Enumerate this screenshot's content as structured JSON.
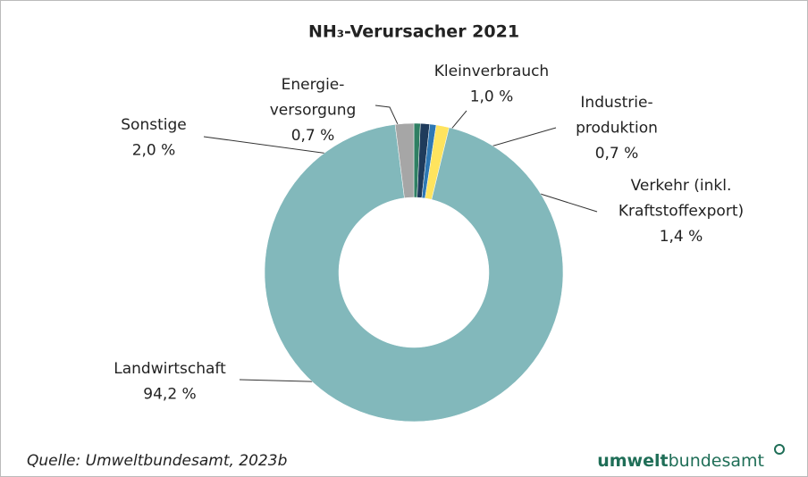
{
  "chart_data": {
    "type": "donut",
    "title": "NH₃-Verursacher 2021",
    "categories": [
      [
        "Energie-",
        "versorgung"
      ],
      [
        "Kleinverbrauch"
      ],
      [
        "Industrie-",
        "produktion"
      ],
      [
        "Verkehr (inkl.",
        "Kraftstoffexport)"
      ],
      [
        "Landwirtschaft"
      ],
      [
        "Sonstige"
      ]
    ],
    "values": [
      0.7,
      1.0,
      0.7,
      1.4,
      94.2,
      2.0
    ],
    "value_labels": [
      "0,7 %",
      "1,0 %",
      "0,7 %",
      "1,4 %",
      "94,2 %",
      "2,0 %"
    ],
    "colors": [
      "#2f7f63",
      "#1f3b5c",
      "#2e78b4",
      "#ffe45e",
      "#82b8bb",
      "#a6a6a6"
    ]
  },
  "source": "Quelle: Umweltbundesamt, 2023b",
  "logo": {
    "bold": "umwelt",
    "normal": "bundesamt"
  }
}
